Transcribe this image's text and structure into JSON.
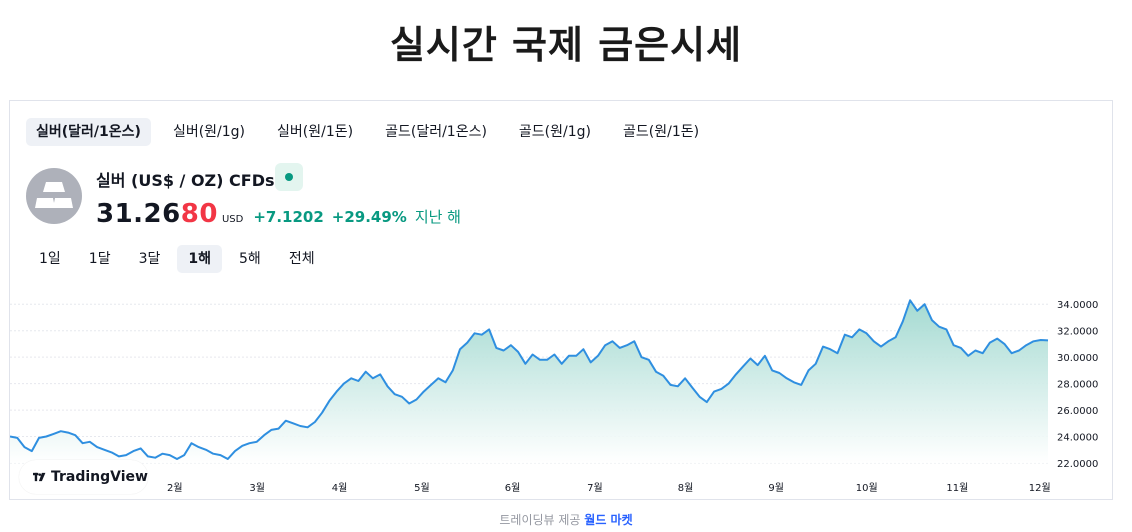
{
  "page": {
    "title": "실시간 국제 금은시세"
  },
  "tabs": [
    {
      "label": "실버(달러/1온스)",
      "active": true
    },
    {
      "label": "실버(원/1g)",
      "active": false
    },
    {
      "label": "실버(원/1돈)",
      "active": false
    },
    {
      "label": "골드(달러/1온스)",
      "active": false
    },
    {
      "label": "골드(원/1g)",
      "active": false
    },
    {
      "label": "골드(원/1돈)",
      "active": false
    }
  ],
  "symbol": {
    "name": "실버 (US$ / OZ) CFDs",
    "logo_icon": "silver-bars-icon",
    "status_icon": "market-open-dot-icon",
    "price_main": "31.26",
    "price_tail": "80",
    "currency": "USD",
    "change_abs": "+7.1202",
    "change_pct": "+29.49%",
    "change_period": "지난 해"
  },
  "ranges": [
    {
      "label": "1일",
      "active": false
    },
    {
      "label": "1달",
      "active": false
    },
    {
      "label": "3달",
      "active": false
    },
    {
      "label": "1해",
      "active": true
    },
    {
      "label": "5해",
      "active": false
    },
    {
      "label": "전체",
      "active": false
    }
  ],
  "branding": {
    "label": "TradingView"
  },
  "footer": {
    "prefix": "트레이딩뷰 제공",
    "link": "월드 마켓"
  },
  "colors": {
    "line": "#2f8fe0",
    "area_top": "#9fd8cf",
    "area_bottom": "#ffffff",
    "up": "#089981",
    "down": "#f23645"
  },
  "chart_data": {
    "type": "area",
    "ylim": [
      22,
      35
    ],
    "yticks": [
      22,
      24,
      26,
      28,
      30,
      32,
      34
    ],
    "ytick_labels": [
      "22.0000",
      "24.0000",
      "26.0000",
      "28.0000",
      "30.0000",
      "32.0000",
      "34.0000"
    ],
    "xtick_labels": [
      "2월",
      "3월",
      "4월",
      "5월",
      "6월",
      "7월",
      "8월",
      "9월",
      "10월",
      "11월",
      "12월"
    ],
    "xtick_positions": [
      10,
      15,
      20,
      25,
      30.5,
      35.5,
      41,
      46.5,
      52,
      57.5,
      62.5
    ],
    "x_range": [
      0,
      63
    ],
    "grid": true,
    "values": [
      24.0,
      23.9,
      23.2,
      22.9,
      23.9,
      24.0,
      24.2,
      24.4,
      24.3,
      24.1,
      23.5,
      23.6,
      23.2,
      23.0,
      22.8,
      22.5,
      22.6,
      22.9,
      23.1,
      22.5,
      22.4,
      22.7,
      22.6,
      22.3,
      22.6,
      23.5,
      23.2,
      23.0,
      22.7,
      22.6,
      22.3,
      22.9,
      23.3,
      23.5,
      23.6,
      24.1,
      24.5,
      24.6,
      25.2,
      25.0,
      24.8,
      24.7,
      25.1,
      25.8,
      26.7,
      27.4,
      28.0,
      28.4,
      28.2,
      28.9,
      28.4,
      28.7,
      27.8,
      27.2,
      27.0,
      26.5,
      26.8,
      27.4,
      27.9,
      28.4,
      28.1,
      29.0,
      30.6,
      31.1,
      31.8,
      31.7,
      32.1,
      30.7,
      30.5,
      30.9,
      30.4,
      29.5,
      30.2,
      29.8,
      29.8,
      30.2,
      29.5,
      30.1,
      30.1,
      30.6,
      29.6,
      30.1,
      30.9,
      31.2,
      30.7,
      30.9,
      31.2,
      30.0,
      29.8,
      28.9,
      28.6,
      27.9,
      27.8,
      28.4,
      27.7,
      27.0,
      26.6,
      27.4,
      27.6,
      28.0,
      28.7,
      29.3,
      29.9,
      29.4,
      30.1,
      29.0,
      28.8,
      28.4,
      28.1,
      27.9,
      29.0,
      29.5,
      30.8,
      30.6,
      30.3,
      31.7,
      31.5,
      32.1,
      31.8,
      31.2,
      30.8,
      31.2,
      31.5,
      32.7,
      34.3,
      33.5,
      34.0,
      32.8,
      32.3,
      32.1,
      30.9,
      30.7,
      30.1,
      30.5,
      30.3,
      31.1,
      31.4,
      31.0,
      30.3,
      30.5,
      30.9,
      31.2,
      31.3,
      31.27
    ]
  }
}
